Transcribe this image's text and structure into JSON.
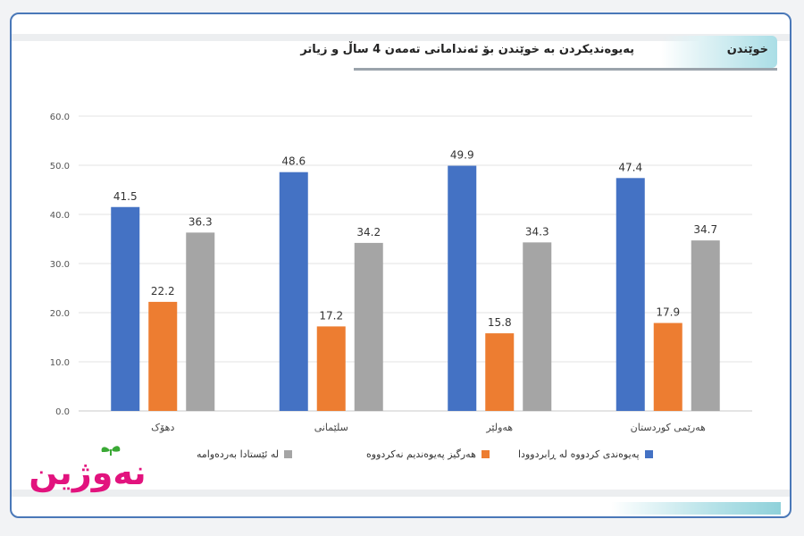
{
  "header": {
    "title": "پەیوەندیکردن بە خوێندن بۆ ئەندامانی تەمەن 4 ساڵ  و زیاتر",
    "section_tag": "خوێندن"
  },
  "logo": {
    "text": "نەوژین"
  },
  "colors": {
    "series1": "#4472c4",
    "series2": "#ed7d31",
    "series3": "#a5a5a5",
    "logo_pink": "#e2137e",
    "logo_green": "#3aa935"
  },
  "chart_data": {
    "type": "bar",
    "categories": [
      "دهۆک",
      "سلێمانی",
      "هەولێر",
      "هەرێمی کوردستان"
    ],
    "series": [
      {
        "name": "پەیوەندی کردووە لە ڕابردوودا",
        "values": [
          41.5,
          48.6,
          49.9,
          47.4
        ]
      },
      {
        "name": "هەرگیز پەیوەندیم نەکردووە",
        "values": [
          22.2,
          17.2,
          15.8,
          17.9
        ]
      },
      {
        "name": "لە ئێستادا  بەردەوامە",
        "values": [
          36.3,
          34.2,
          34.3,
          34.7
        ]
      }
    ],
    "ylim": [
      0,
      60
    ],
    "yticks": [
      "0.0",
      "10.0",
      "20.0",
      "30.0",
      "40.0",
      "50.0",
      "60.0"
    ],
    "grid": true,
    "legend": "bottom"
  }
}
